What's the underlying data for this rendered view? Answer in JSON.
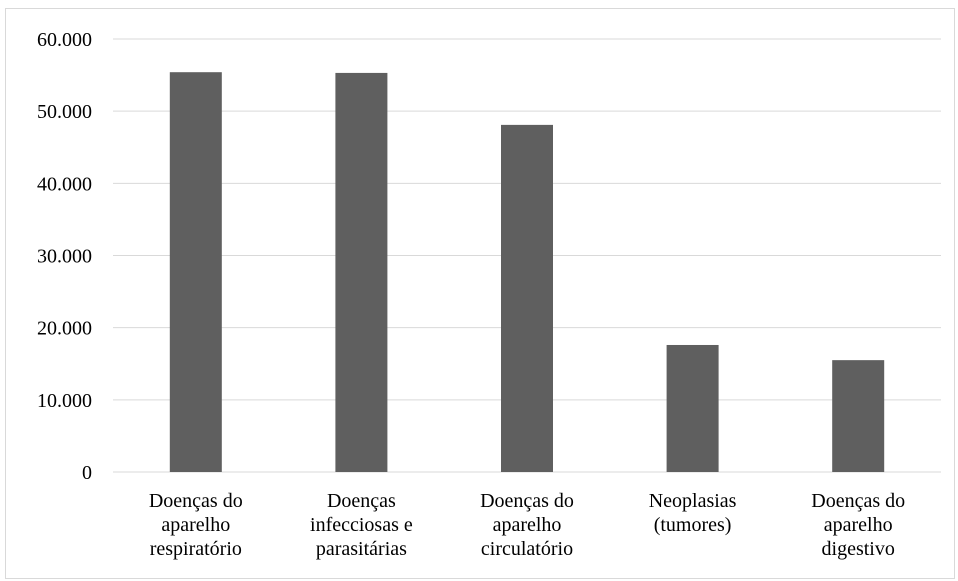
{
  "chart_data": {
    "type": "bar",
    "categories": [
      [
        "Doenças do",
        "aparelho",
        "respiratório"
      ],
      [
        "Doenças",
        "infecciosas e",
        "parasitárias"
      ],
      [
        "Doenças do",
        "aparelho",
        "circulatório"
      ],
      [
        "Neoplasias",
        "(tumores)"
      ],
      [
        "Doenças do",
        "aparelho",
        "digestivo"
      ]
    ],
    "values": [
      55400,
      55300,
      48100,
      17600,
      15500
    ],
    "ylim": [
      0,
      60000
    ],
    "yticks": [
      0,
      10000,
      20000,
      30000,
      40000,
      50000,
      60000
    ],
    "ytick_labels": [
      "0",
      "10.000",
      "20.000",
      "30.000",
      "40.000",
      "50.000",
      "60.000"
    ],
    "bar_color": "#5f5f5f",
    "grid_color": "#d9d9d9",
    "grid": true,
    "legend": "none"
  }
}
